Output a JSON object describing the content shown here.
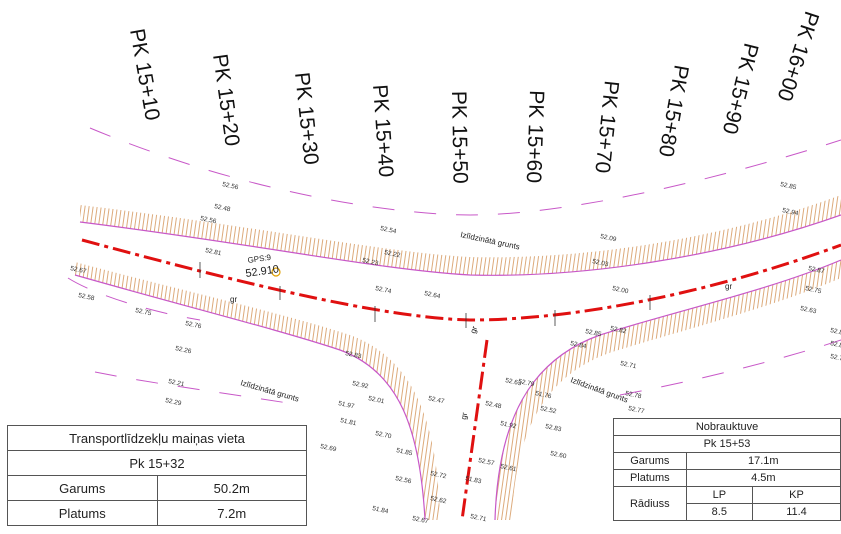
{
  "stations": [
    "PK 15+10",
    "PK 15+20",
    "PK 15+30",
    "PK 15+40",
    "PK 15+50",
    "PK 15+60",
    "PK 15+70",
    "PK 15+80",
    "PK 15+90",
    "PK 16+00"
  ],
  "labels": {
    "gps": "GPS:9",
    "gps_value": "52.910",
    "soil_1": "Izlīdzinātā grunts",
    "soil_2": "Izlīdzinātā grunts",
    "soil_3": "Izlīdzinātā grunts",
    "gr": "gr"
  },
  "spot_levels": [
    "52.56",
    "52.48",
    "52.56",
    "52.81",
    "52.67",
    "52.58",
    "52.75",
    "52.76",
    "52.26",
    "52.21",
    "52.29",
    "52.54",
    "52.22",
    "52.23",
    "52.74",
    "52.64",
    "52.09",
    "52.03",
    "52.00",
    "52.85",
    "52.82",
    "52.84",
    "52.63",
    "52.79",
    "52.71",
    "52.78",
    "52.77",
    "52.85",
    "52.94",
    "52.87",
    "52.75",
    "52.63",
    "52.84",
    "52.81",
    "52.76",
    "52.83",
    "52.92",
    "51.97",
    "52.01",
    "51.81",
    "52.69",
    "52.70",
    "51.85",
    "52.47",
    "52.56",
    "51.76",
    "52.52",
    "51.92",
    "52.48",
    "52.83",
    "52.60",
    "52.62",
    "52.72",
    "51.83",
    "51.84",
    "52.67",
    "52.71",
    "52.57",
    "52.61"
  ],
  "table_change": {
    "title": "Transportlīdzekļu maiņas vieta",
    "station": "Pk 15+32",
    "rows": [
      {
        "label": "Garums",
        "value": "50.2m"
      },
      {
        "label": "Platums",
        "value": "7.2m"
      }
    ]
  },
  "table_exit": {
    "title": "Nobrauktuve",
    "station": "Pk 15+53",
    "garums_label": "Garums",
    "garums_value": "17.1m",
    "platums_label": "Platums",
    "platums_value": "4.5m",
    "radius_label": "Rādiuss",
    "lp_label": "LP",
    "kp_label": "KP",
    "lp_value": "8.5",
    "kp_value": "11.4"
  },
  "colors": {
    "axis": "#e01010",
    "edge": "#c858c8",
    "slope": "#d4955a",
    "text": "#111111"
  }
}
